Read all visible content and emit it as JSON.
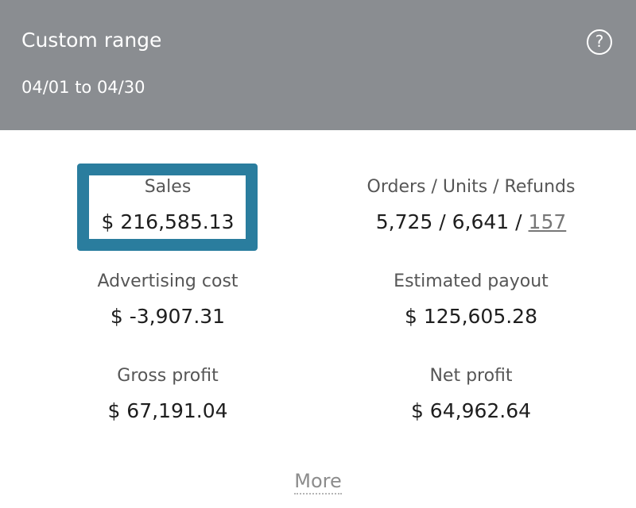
{
  "header": {
    "title": "Custom range",
    "date_range": "04/01 to 04/30",
    "help_icon": "?"
  },
  "metrics": {
    "sales": {
      "label": "Sales",
      "value": "$ 216,585.13"
    },
    "orders_units_refunds": {
      "label": "Orders / Units / Refunds",
      "orders": "5,725",
      "separator": " / ",
      "units": "6,641",
      "refunds": "157"
    },
    "advertising_cost": {
      "label": "Advertising cost",
      "value": "$ -3,907.31"
    },
    "estimated_payout": {
      "label": "Estimated payout",
      "value": "$ 125,605.28"
    },
    "gross_profit": {
      "label": "Gross profit",
      "value": "$ 67,191.04"
    },
    "net_profit": {
      "label": "Net profit",
      "value": "$ 64,962.64"
    }
  },
  "footer": {
    "more_label": "More"
  },
  "colors": {
    "header_bg": "#8a8d91",
    "highlight_border": "#2a7d9e"
  },
  "icons": {
    "help": "help-circle-icon"
  }
}
